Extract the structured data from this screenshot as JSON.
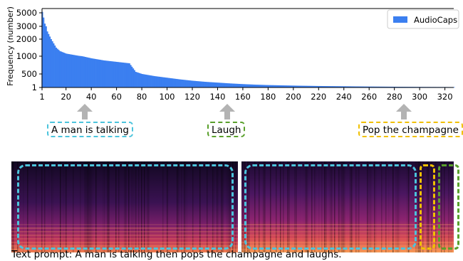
{
  "chart_data": {
    "type": "bar",
    "title": "",
    "xlabel": "",
    "ylabel": "Frequency (number)",
    "y_scale": "log-like",
    "x_ticks": [
      1,
      20,
      40,
      60,
      80,
      100,
      120,
      140,
      160,
      180,
      200,
      220,
      240,
      260,
      280,
      300,
      320
    ],
    "y_ticks": [
      {
        "label": "1",
        "value": 1
      },
      {
        "label": "500",
        "value": 500
      },
      {
        "label": "1000",
        "value": 1000
      },
      {
        "label": "2000",
        "value": 2000
      },
      {
        "label": "3000",
        "value": 3000
      },
      {
        "label": "5000",
        "value": 5000
      }
    ],
    "xlim": [
      1,
      327
    ],
    "legend": {
      "placement": "top-right",
      "entries": [
        "AudioCaps"
      ]
    },
    "series": [
      {
        "name": "AudioCaps",
        "color": "#3b7ff0",
        "profile": [
          [
            1,
            5200
          ],
          [
            2,
            4300
          ],
          [
            3,
            3400
          ],
          [
            5,
            2600
          ],
          [
            8,
            2000
          ],
          [
            12,
            1500
          ],
          [
            15,
            1300
          ],
          [
            20,
            1150
          ],
          [
            30,
            1020
          ],
          [
            40,
            940
          ],
          [
            50,
            880
          ],
          [
            60,
            840
          ],
          [
            70,
            800
          ],
          [
            75,
            560
          ],
          [
            80,
            500
          ],
          [
            90,
            420
          ],
          [
            100,
            360
          ],
          [
            110,
            300
          ],
          [
            120,
            250
          ],
          [
            130,
            210
          ],
          [
            140,
            180
          ],
          [
            150,
            150
          ],
          [
            160,
            125
          ],
          [
            170,
            105
          ],
          [
            180,
            90
          ],
          [
            200,
            70
          ],
          [
            220,
            55
          ],
          [
            240,
            45
          ],
          [
            260,
            35
          ],
          [
            280,
            28
          ],
          [
            300,
            22
          ],
          [
            320,
            18
          ],
          [
            327,
            16
          ]
        ]
      }
    ]
  },
  "callouts": [
    {
      "text": "A man is talking",
      "color": "#4cc4dc"
    },
    {
      "text": "Laugh",
      "color": "#5aa02c"
    },
    {
      "text": "Pop the champagne",
      "color": "#f0c000"
    }
  ],
  "caption": "Text prompt: A man is talking then pops the champagne and laughs."
}
